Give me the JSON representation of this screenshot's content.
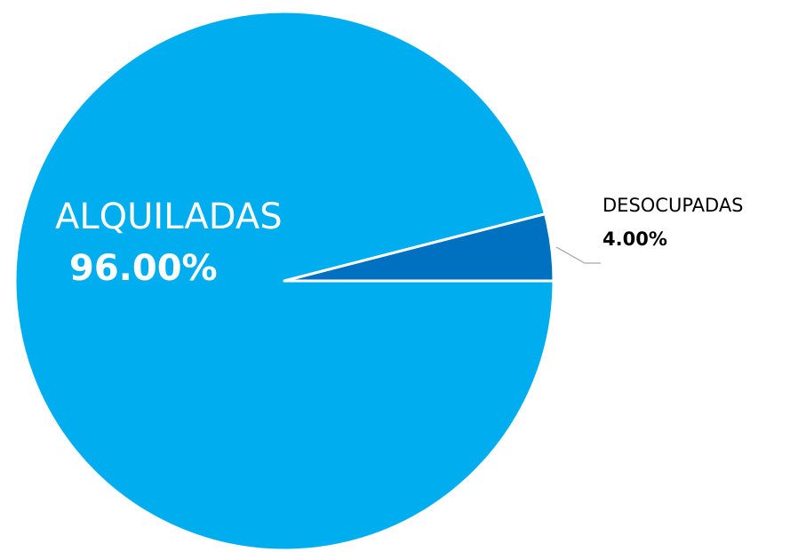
{
  "chart_data": {
    "type": "pie",
    "categories": [
      "ALQUILADAS",
      "DESOCUPADAS"
    ],
    "values": [
      96,
      4
    ],
    "value_labels": [
      "96.00%",
      "4.00%"
    ],
    "colors": [
      "#00aeef",
      "#0070c0"
    ]
  }
}
